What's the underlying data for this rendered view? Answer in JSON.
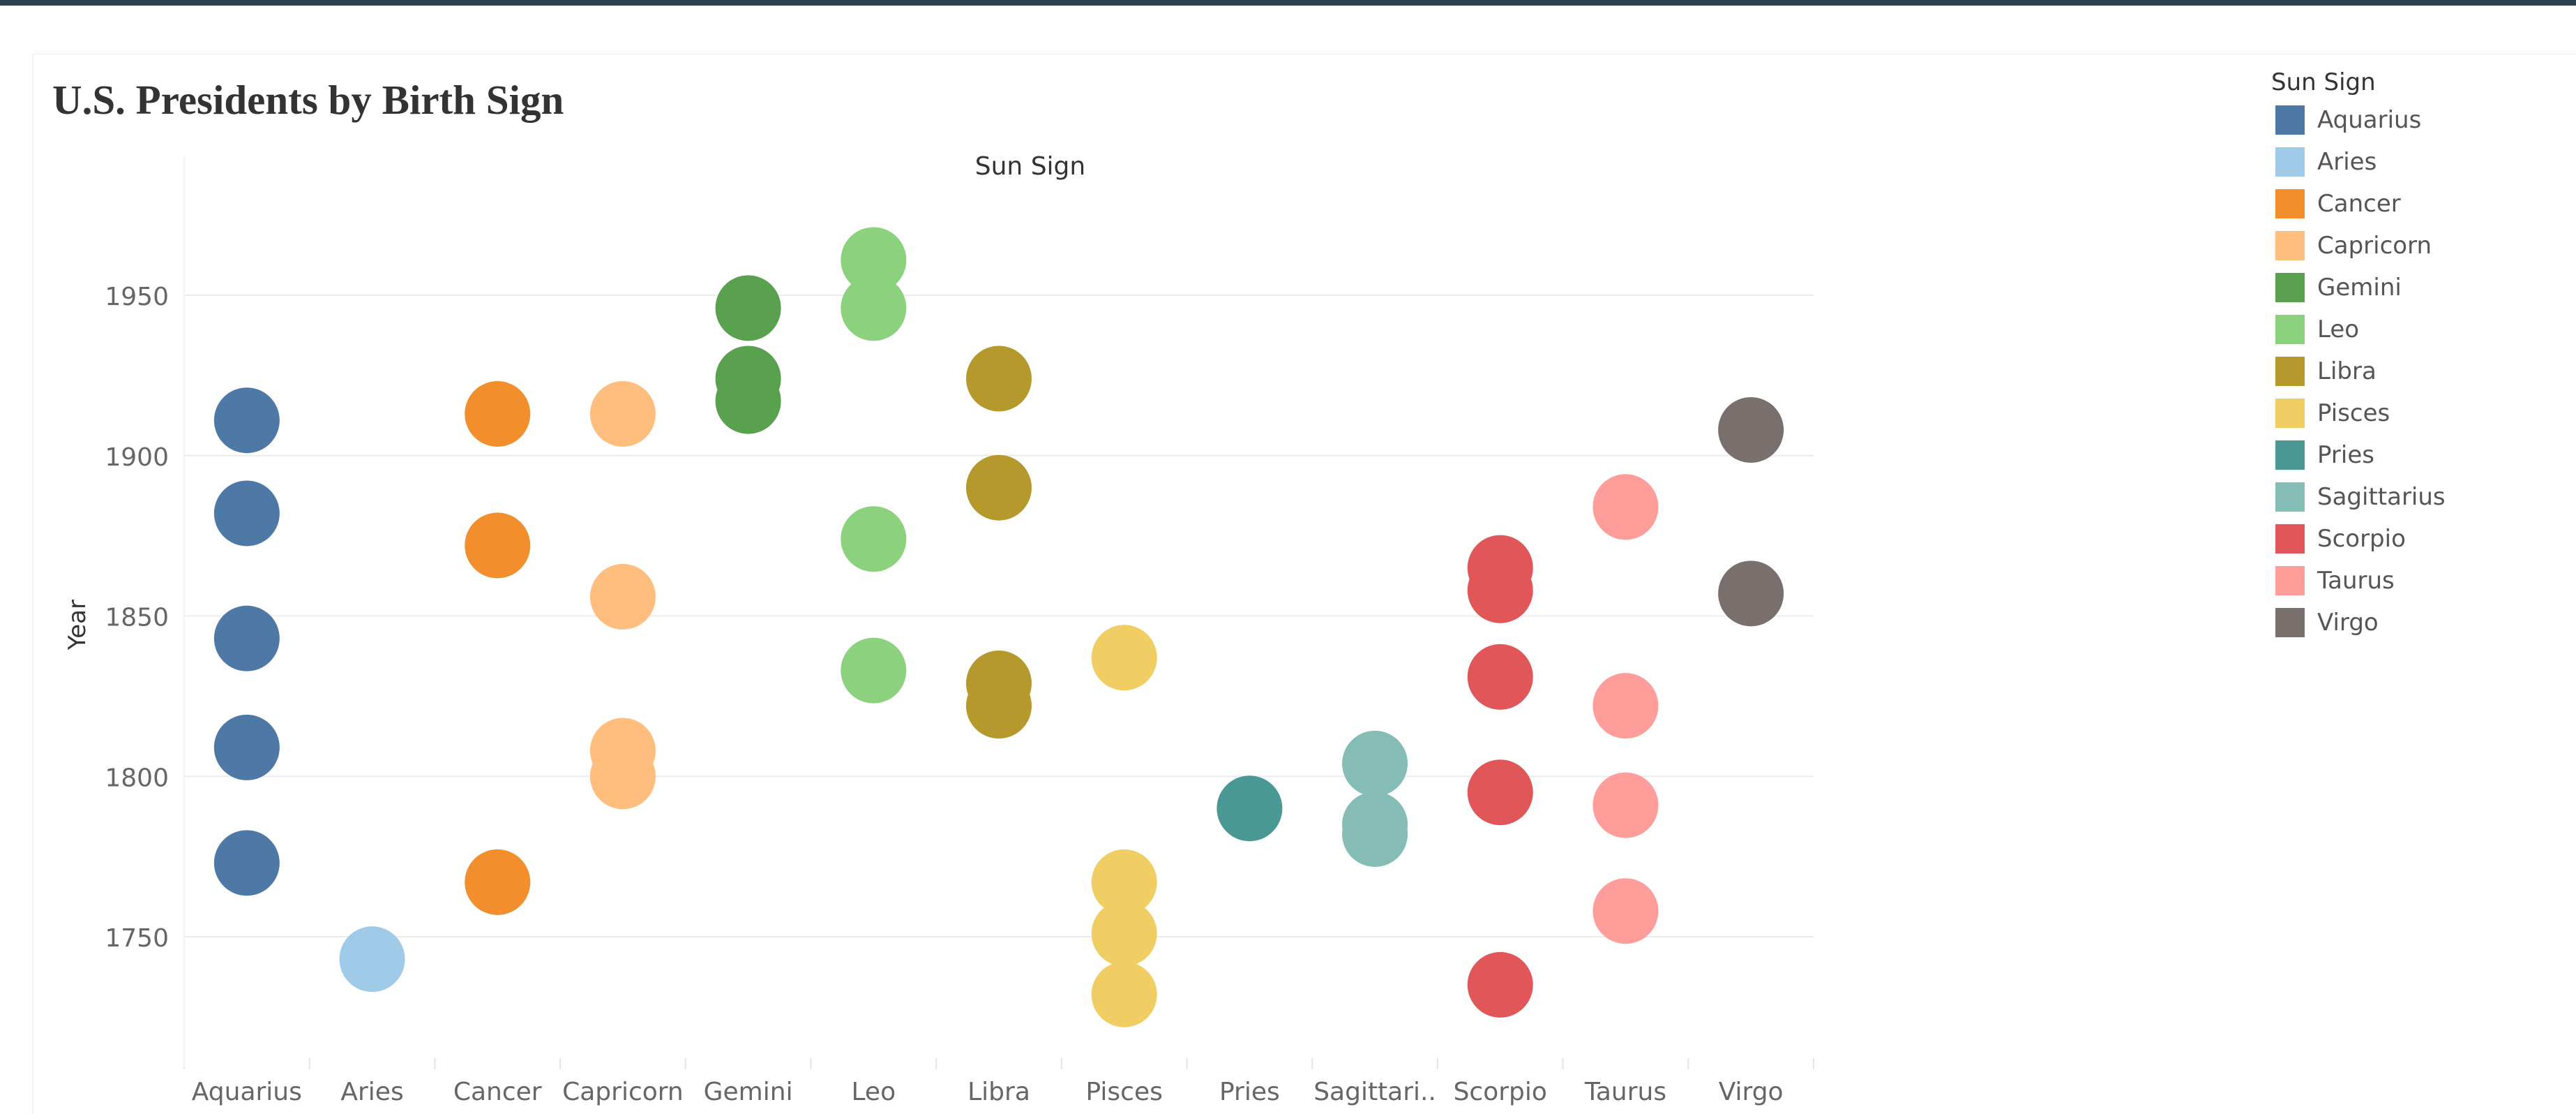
{
  "title": "U.S. Presidents by Birth Sign",
  "legend": {
    "title": "Sun Sign",
    "items": [
      {
        "label": "Aquarius",
        "color": "#4e79a7"
      },
      {
        "label": "Aries",
        "color": "#a0cbe8"
      },
      {
        "label": "Cancer",
        "color": "#f28e2b"
      },
      {
        "label": "Capricorn",
        "color": "#ffbe7d"
      },
      {
        "label": "Gemini",
        "color": "#59a14f"
      },
      {
        "label": "Leo",
        "color": "#8cd17d"
      },
      {
        "label": "Libra",
        "color": "#b6992d"
      },
      {
        "label": "Pisces",
        "color": "#f1ce63"
      },
      {
        "label": "Pries",
        "color": "#499894"
      },
      {
        "label": "Sagittarius",
        "color": "#86bcb6"
      },
      {
        "label": "Scorpio",
        "color": "#e15759"
      },
      {
        "label": "Taurus",
        "color": "#ff9d9a"
      },
      {
        "label": "Virgo",
        "color": "#79706e"
      }
    ]
  },
  "chart_data": {
    "type": "scatter",
    "title": "U.S. Presidents by Birth Sign",
    "column_header": "Sun Sign",
    "xlabel": "",
    "ylabel": "Year",
    "categories": [
      "Aquarius",
      "Aries",
      "Cancer",
      "Capricorn",
      "Gemini",
      "Leo",
      "Libra",
      "Pisces",
      "Pries",
      "Sagittari..",
      "Scorpio",
      "Taurus",
      "Virgo"
    ],
    "yticks": [
      1750,
      1800,
      1850,
      1900,
      1950
    ],
    "ylim": [
      1709,
      1973
    ],
    "grid": true,
    "legend_position": "right",
    "series": [
      {
        "name": "Aquarius",
        "values": [
          1773,
          1809,
          1843,
          1882,
          1911
        ]
      },
      {
        "name": "Aries",
        "values": [
          1743
        ]
      },
      {
        "name": "Cancer",
        "values": [
          1767,
          1872,
          1913
        ]
      },
      {
        "name": "Capricorn",
        "values": [
          1800,
          1808,
          1856,
          1913
        ]
      },
      {
        "name": "Gemini",
        "values": [
          1917,
          1924,
          1946
        ]
      },
      {
        "name": "Leo",
        "values": [
          1833,
          1874,
          1946,
          1961
        ]
      },
      {
        "name": "Libra",
        "values": [
          1822,
          1829,
          1890,
          1924
        ]
      },
      {
        "name": "Pisces",
        "values": [
          1732,
          1751,
          1767,
          1837
        ]
      },
      {
        "name": "Pries",
        "values": [
          1790
        ]
      },
      {
        "name": "Sagittarius",
        "values": [
          1782,
          1785,
          1804
        ]
      },
      {
        "name": "Scorpio",
        "values": [
          1735,
          1795,
          1831,
          1858,
          1865
        ]
      },
      {
        "name": "Taurus",
        "values": [
          1758,
          1791,
          1822,
          1884
        ]
      },
      {
        "name": "Virgo",
        "values": [
          1857,
          1908
        ]
      }
    ]
  }
}
